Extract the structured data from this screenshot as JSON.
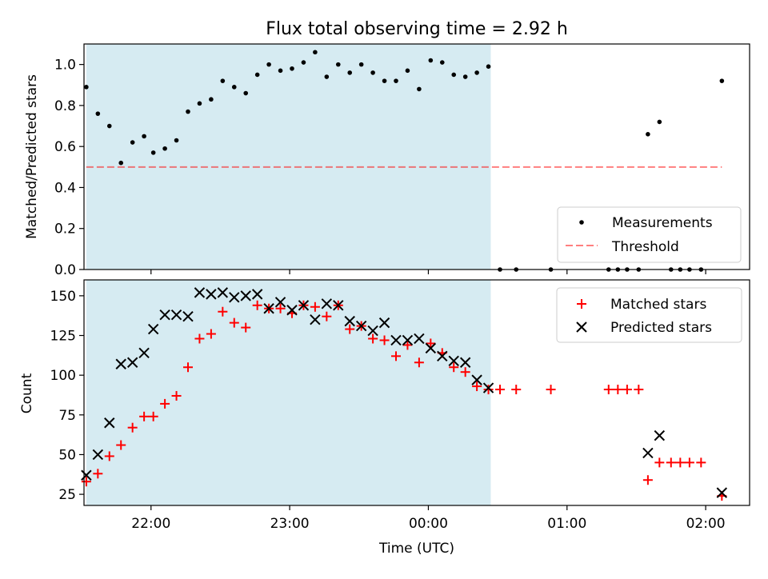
{
  "title": "Flux total observing time = 2.92 h",
  "colors": {
    "shade": "#add8e6",
    "threshold": "#ff0000",
    "measurement": "#000000",
    "matched": "#ff0000",
    "predicted": "#000000"
  },
  "chart_data": [
    {
      "type": "scatter",
      "panel": "top",
      "ylabel": "Matched/Predicted stars",
      "ylim": [
        0.0,
        1.1
      ],
      "yticks": [
        0.0,
        0.2,
        0.4,
        0.6,
        0.8,
        1.0
      ],
      "ytick_labels": [
        "0.0",
        "0.2",
        "0.4",
        "0.6",
        "0.8",
        "1.0"
      ],
      "xlim": [
        "21:31",
        "02:19"
      ],
      "xticks": [
        "22:00",
        "23:00",
        "00:00",
        "01:00",
        "02:00"
      ],
      "shaded_span": [
        "21:32",
        "00:27"
      ],
      "legend": {
        "position": "lower right",
        "entries": [
          "Measurements",
          "Threshold"
        ]
      },
      "threshold": {
        "name": "Threshold",
        "y": 0.5,
        "x_range": [
          "21:32",
          "02:07"
        ]
      },
      "series": [
        {
          "name": "Measurements",
          "marker": "dot",
          "points": [
            [
              "21:32",
              0.89
            ],
            [
              "21:37",
              0.76
            ],
            [
              "21:42",
              0.7
            ],
            [
              "21:47",
              0.52
            ],
            [
              "21:52",
              0.62
            ],
            [
              "21:57",
              0.65
            ],
            [
              "22:01",
              0.57
            ],
            [
              "22:06",
              0.59
            ],
            [
              "22:11",
              0.63
            ],
            [
              "22:16",
              0.77
            ],
            [
              "22:21",
              0.81
            ],
            [
              "22:26",
              0.83
            ],
            [
              "22:31",
              0.92
            ],
            [
              "22:36",
              0.89
            ],
            [
              "22:41",
              0.86
            ],
            [
              "22:46",
              0.95
            ],
            [
              "22:51",
              1.0
            ],
            [
              "22:56",
              0.97
            ],
            [
              "23:01",
              0.98
            ],
            [
              "23:06",
              1.01
            ],
            [
              "23:11",
              1.06
            ],
            [
              "23:16",
              0.94
            ],
            [
              "23:21",
              1.0
            ],
            [
              "23:26",
              0.96
            ],
            [
              "23:31",
              1.0
            ],
            [
              "23:36",
              0.96
            ],
            [
              "23:41",
              0.92
            ],
            [
              "23:46",
              0.92
            ],
            [
              "23:51",
              0.97
            ],
            [
              "23:56",
              0.88
            ],
            [
              "00:01",
              1.02
            ],
            [
              "00:06",
              1.01
            ],
            [
              "00:11",
              0.95
            ],
            [
              "00:16",
              0.94
            ],
            [
              "00:21",
              0.96
            ],
            [
              "00:26",
              0.99
            ],
            [
              "00:31",
              0.0
            ],
            [
              "00:38",
              0.0
            ],
            [
              "00:53",
              0.0
            ],
            [
              "01:18",
              0.0
            ],
            [
              "01:22",
              0.0
            ],
            [
              "01:26",
              0.0
            ],
            [
              "01:31",
              0.0
            ],
            [
              "01:35",
              0.66
            ],
            [
              "01:40",
              0.72
            ],
            [
              "01:45",
              0.0
            ],
            [
              "01:49",
              0.0
            ],
            [
              "01:53",
              0.0
            ],
            [
              "01:58",
              0.0
            ],
            [
              "02:07",
              0.92
            ]
          ]
        }
      ]
    },
    {
      "type": "scatter",
      "panel": "bottom",
      "ylabel": "Count",
      "xlabel": "Time (UTC)",
      "ylim": [
        18,
        160
      ],
      "yticks": [
        25,
        50,
        75,
        100,
        125,
        150
      ],
      "ytick_labels": [
        "25",
        "50",
        "75",
        "100",
        "125",
        "150"
      ],
      "xlim": [
        "21:31",
        "02:19"
      ],
      "xticks": [
        "22:00",
        "23:00",
        "00:00",
        "01:00",
        "02:00"
      ],
      "xtick_labels": [
        "22:00",
        "23:00",
        "00:00",
        "01:00",
        "02:00"
      ],
      "shaded_span": [
        "21:32",
        "00:27"
      ],
      "legend": {
        "position": "upper right",
        "entries": [
          "Matched stars",
          "Predicted stars"
        ]
      },
      "series": [
        {
          "name": "Matched stars",
          "marker": "plus",
          "points": [
            [
              "21:32",
              33
            ],
            [
              "21:37",
              38
            ],
            [
              "21:42",
              49
            ],
            [
              "21:47",
              56
            ],
            [
              "21:52",
              67
            ],
            [
              "21:57",
              74
            ],
            [
              "22:01",
              74
            ],
            [
              "22:06",
              82
            ],
            [
              "22:11",
              87
            ],
            [
              "22:16",
              105
            ],
            [
              "22:21",
              123
            ],
            [
              "22:26",
              126
            ],
            [
              "22:31",
              140
            ],
            [
              "22:36",
              133
            ],
            [
              "22:41",
              130
            ],
            [
              "22:46",
              144
            ],
            [
              "22:51",
              142
            ],
            [
              "22:56",
              142
            ],
            [
              "23:01",
              139
            ],
            [
              "23:06",
              144
            ],
            [
              "23:11",
              143
            ],
            [
              "23:16",
              137
            ],
            [
              "23:21",
              144
            ],
            [
              "23:26",
              129
            ],
            [
              "23:31",
              131
            ],
            [
              "23:36",
              123
            ],
            [
              "23:41",
              122
            ],
            [
              "23:46",
              112
            ],
            [
              "23:51",
              119
            ],
            [
              "23:56",
              108
            ],
            [
              "00:01",
              120
            ],
            [
              "00:06",
              114
            ],
            [
              "00:11",
              105
            ],
            [
              "00:16",
              102
            ],
            [
              "00:21",
              93
            ],
            [
              "00:26",
              91
            ],
            [
              "00:31",
              91
            ],
            [
              "00:38",
              91
            ],
            [
              "00:53",
              91
            ],
            [
              "01:18",
              91
            ],
            [
              "01:22",
              91
            ],
            [
              "01:26",
              91
            ],
            [
              "01:31",
              91
            ],
            [
              "01:35",
              34
            ],
            [
              "01:40",
              45
            ],
            [
              "01:45",
              45
            ],
            [
              "01:49",
              45
            ],
            [
              "01:53",
              45
            ],
            [
              "01:58",
              45
            ],
            [
              "02:07",
              24
            ]
          ]
        },
        {
          "name": "Predicted stars",
          "marker": "x",
          "points": [
            [
              "21:32",
              37
            ],
            [
              "21:37",
              50
            ],
            [
              "21:42",
              70
            ],
            [
              "21:47",
              107
            ],
            [
              "21:52",
              108
            ],
            [
              "21:57",
              114
            ],
            [
              "22:01",
              129
            ],
            [
              "22:06",
              138
            ],
            [
              "22:11",
              138
            ],
            [
              "22:16",
              137
            ],
            [
              "22:21",
              152
            ],
            [
              "22:26",
              151
            ],
            [
              "22:31",
              152
            ],
            [
              "22:36",
              149
            ],
            [
              "22:41",
              150
            ],
            [
              "22:46",
              151
            ],
            [
              "22:51",
              142
            ],
            [
              "22:56",
              146
            ],
            [
              "23:01",
              141
            ],
            [
              "23:06",
              144
            ],
            [
              "23:11",
              135
            ],
            [
              "23:16",
              145
            ],
            [
              "23:21",
              144
            ],
            [
              "23:26",
              134
            ],
            [
              "23:31",
              131
            ],
            [
              "23:36",
              128
            ],
            [
              "23:41",
              133
            ],
            [
              "23:46",
              122
            ],
            [
              "23:51",
              122
            ],
            [
              "23:56",
              123
            ],
            [
              "00:01",
              117
            ],
            [
              "00:06",
              112
            ],
            [
              "00:11",
              109
            ],
            [
              "00:16",
              108
            ],
            [
              "00:21",
              97
            ],
            [
              "00:26",
              92
            ],
            [
              "01:35",
              51
            ],
            [
              "01:40",
              62
            ],
            [
              "02:07",
              26
            ]
          ]
        }
      ]
    }
  ]
}
